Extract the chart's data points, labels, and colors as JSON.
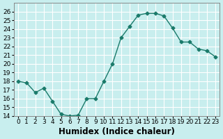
{
  "x": [
    0,
    1,
    2,
    3,
    4,
    5,
    6,
    7,
    8,
    9,
    10,
    11,
    12,
    13,
    14,
    15,
    16,
    17,
    18,
    19,
    20,
    21,
    22,
    23
  ],
  "y": [
    18.0,
    17.8,
    16.7,
    17.2,
    15.7,
    14.2,
    14.0,
    14.1,
    16.0,
    16.0,
    18.0,
    20.0,
    23.0,
    24.3,
    25.6,
    25.8,
    25.8,
    25.5,
    24.1,
    22.5,
    22.5,
    21.7,
    21.5,
    20.8
  ],
  "line_color": "#1a7a6a",
  "marker": "D",
  "marker_size": 2.5,
  "bg_color": "#c8eeee",
  "grid_color": "#ffffff",
  "xlabel": "Humidex (Indice chaleur)",
  "ylim": [
    14,
    27
  ],
  "yticks": [
    14,
    15,
    16,
    17,
    18,
    19,
    20,
    21,
    22,
    23,
    24,
    25,
    26
  ],
  "xticks": [
    0,
    1,
    2,
    3,
    4,
    5,
    6,
    7,
    8,
    9,
    10,
    11,
    12,
    13,
    14,
    15,
    16,
    17,
    18,
    19,
    20,
    21,
    22,
    23
  ],
  "xlim": [
    -0.5,
    23.5
  ],
  "tick_labelsize": 6.5,
  "xlabel_fontsize": 8.5
}
